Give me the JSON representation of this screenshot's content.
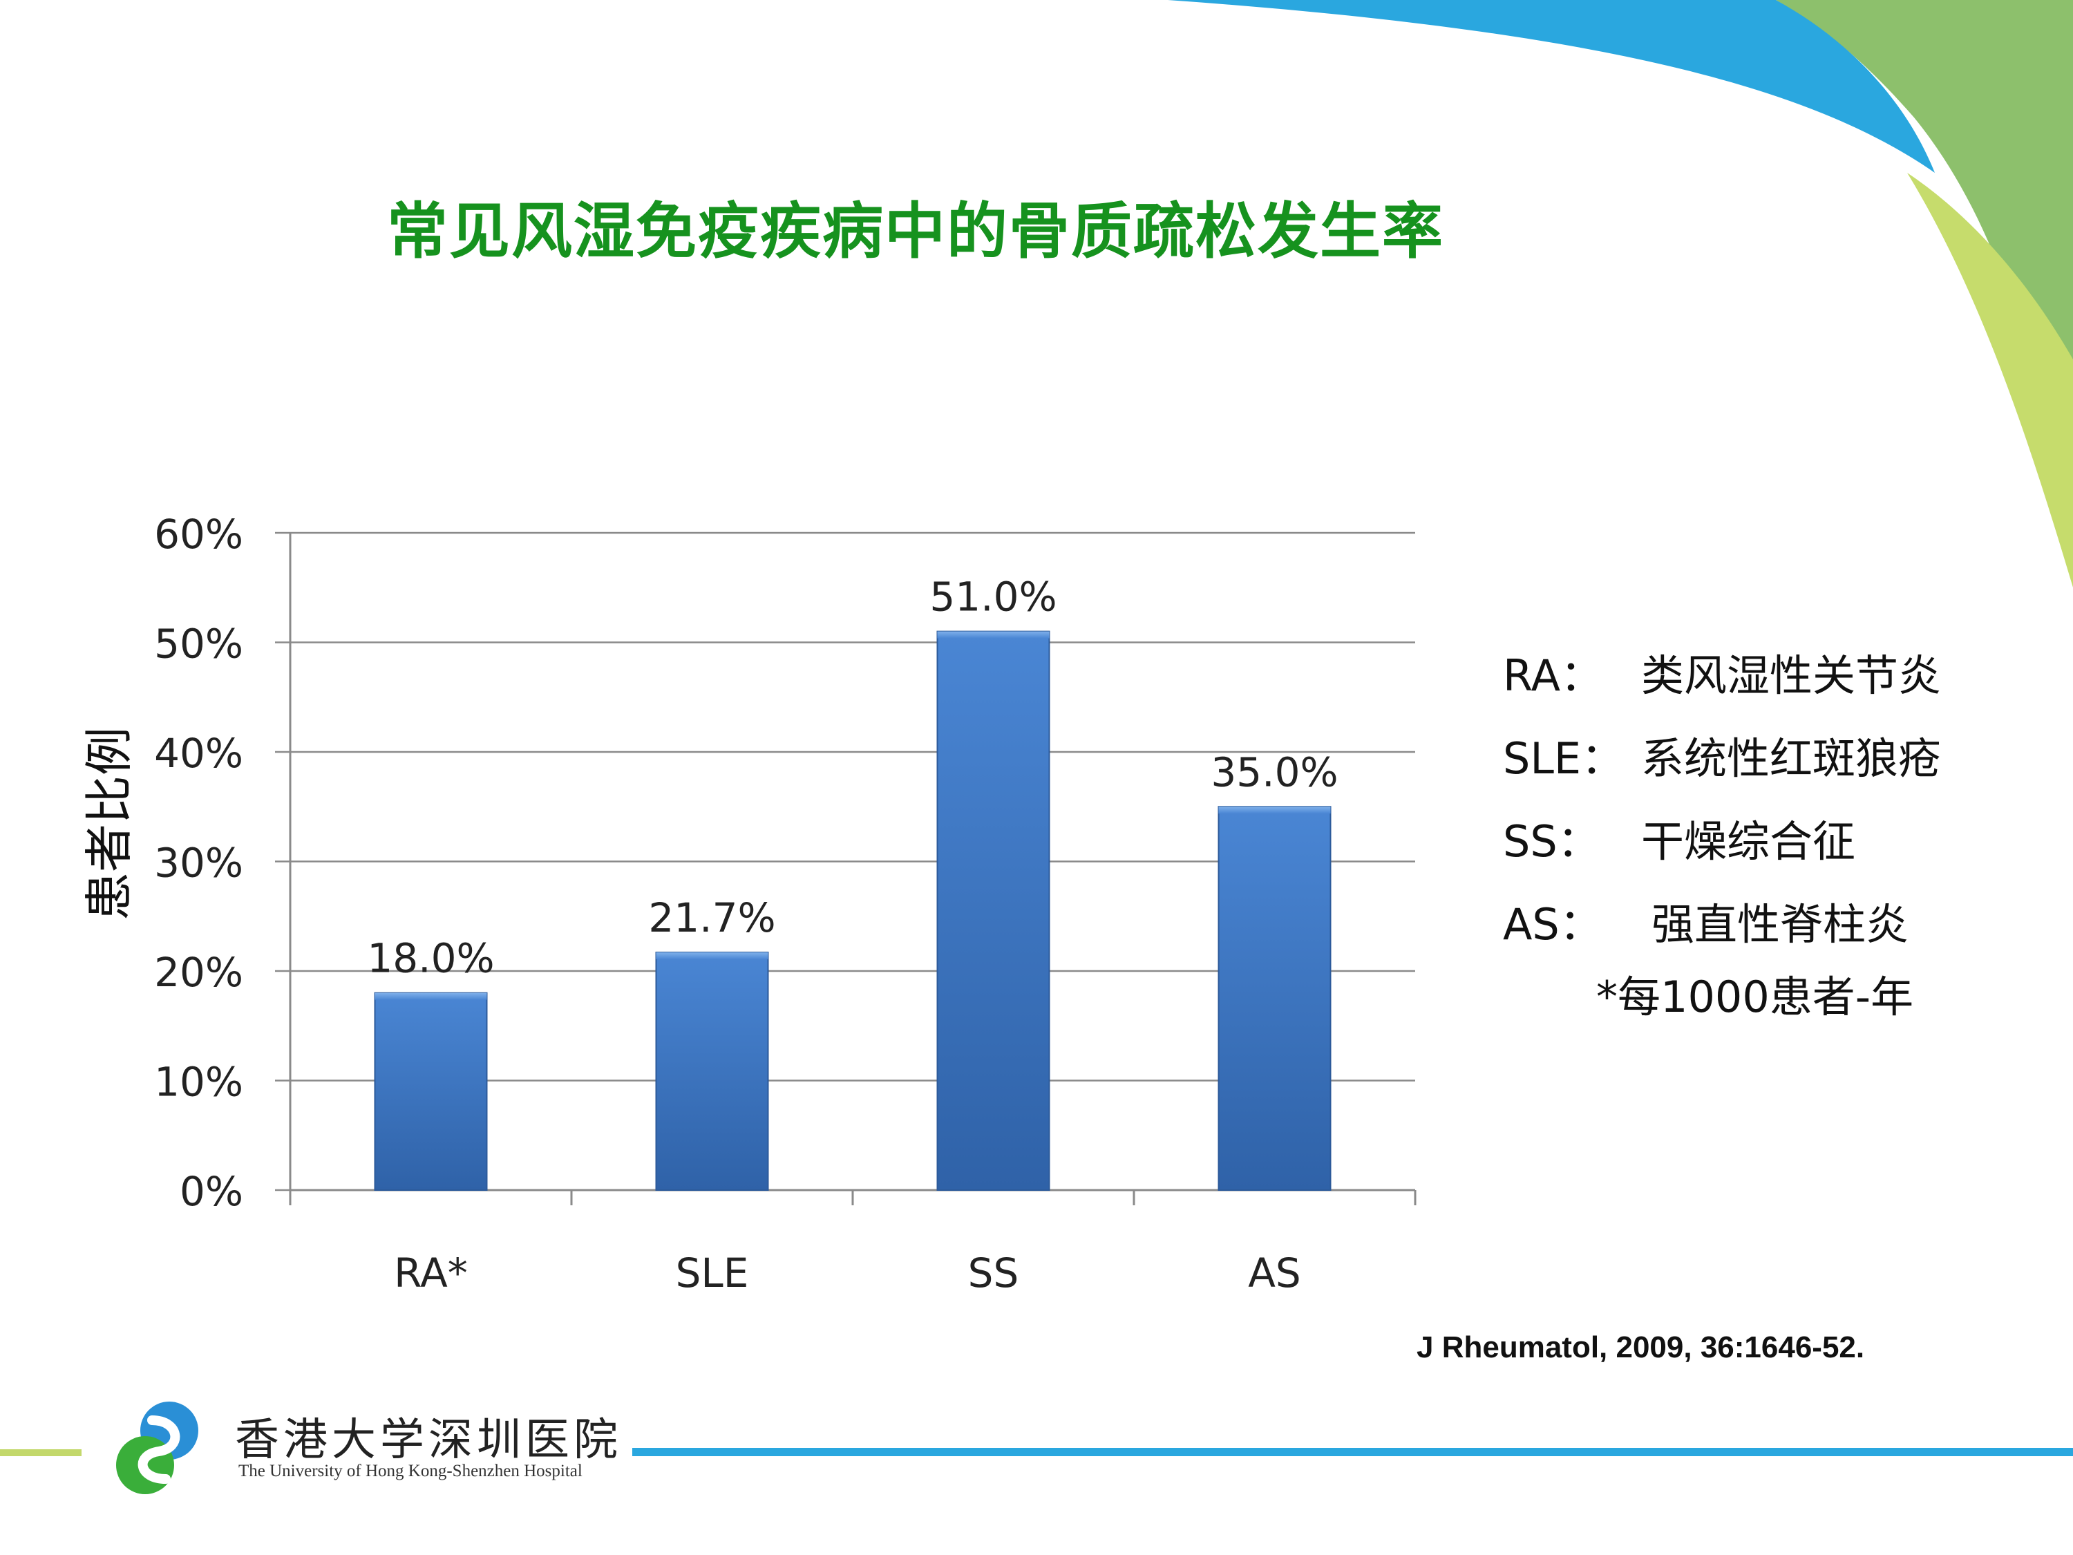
{
  "slide": {
    "title": "常见风湿免疫疾病中的骨质疏松发生率",
    "citation": "J Rheumatol, 2009, 36:1646-52.",
    "legend": [
      {
        "abbr": "RA：",
        "desc": "类风湿性关节炎"
      },
      {
        "abbr": "SLE：",
        "desc": "系统性红斑狼疮"
      },
      {
        "abbr": "SS：",
        "desc": "干燥综合征"
      },
      {
        "abbr": "AS：",
        "desc": "强直性脊柱炎"
      }
    ],
    "note": "*每1000患者-年",
    "logo": {
      "name_cn": "香港大学深圳医院",
      "name_en": "The University of Hong Kong-Shenzhen Hospital",
      "colors": {
        "blue": "#2a8fd6",
        "green": "#3aae3a"
      }
    },
    "colors": {
      "title": "#16921e",
      "bar": "#4a86d4",
      "accent_blue": "#2aa7df",
      "accent_green": "#c3d86b"
    }
  },
  "chart_data": {
    "type": "bar",
    "categories": [
      "RA*",
      "SLE",
      "SS",
      "AS"
    ],
    "values": [
      18.0,
      21.7,
      51.0,
      35.0
    ],
    "data_labels": [
      "18.0%",
      "21.7%",
      "51.0%",
      "35.0%"
    ],
    "ylabel": "患者比例",
    "xlabel": "",
    "ylim": [
      0,
      60
    ],
    "yticks": [
      0,
      10,
      20,
      30,
      40,
      50,
      60
    ],
    "ytick_labels": [
      "0%",
      "10%",
      "20%",
      "30%",
      "40%",
      "50%",
      "60%"
    ],
    "grid": true,
    "legend": "none"
  }
}
